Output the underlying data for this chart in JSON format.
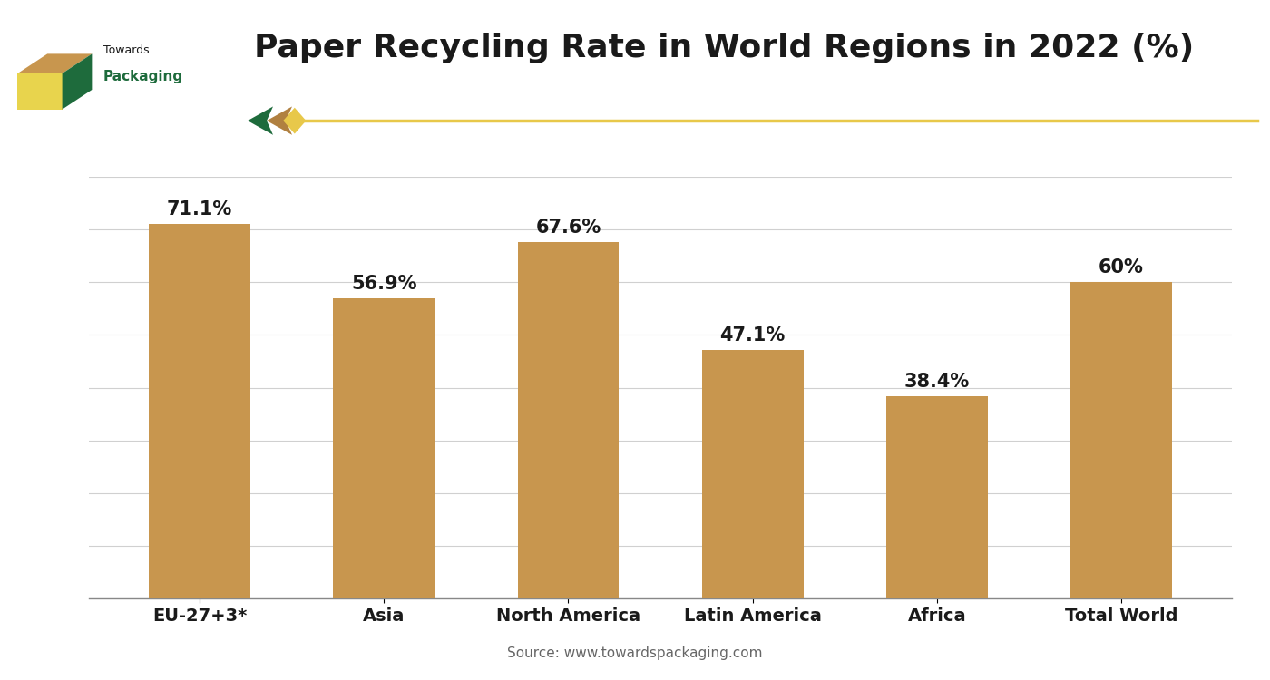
{
  "title": "Paper Recycling Rate in World Regions in 2022 (%)",
  "categories": [
    "EU-27+3*",
    "Asia",
    "North America",
    "Latin America",
    "Africa",
    "Total World"
  ],
  "values": [
    71.1,
    56.9,
    67.6,
    47.1,
    38.4,
    60.0
  ],
  "labels": [
    "71.1%",
    "56.9%",
    "67.6%",
    "47.1%",
    "38.4%",
    "60%"
  ],
  "bar_color": "#C8964E",
  "background_color": "#FFFFFF",
  "title_fontsize": 26,
  "label_fontsize": 15,
  "tick_fontsize": 14,
  "source_text": "Source: www.towardspackaging.com",
  "ylim": [
    0,
    80
  ],
  "yticks": [
    0,
    10,
    20,
    30,
    40,
    50,
    60,
    70,
    80
  ],
  "grid_color": "#D0D0D0",
  "title_color": "#1A1A1A",
  "bar_width": 0.55,
  "logo_text1": "Towards",
  "logo_text2": "Packaging",
  "logo_color_green": "#1E6B3C",
  "logo_color_yellow": "#E8D44D",
  "logo_color_tan": "#C8964E",
  "arrow_color": "#E8C84A",
  "arrow_green": "#1E6B3C",
  "arrow_tan": "#B08040"
}
